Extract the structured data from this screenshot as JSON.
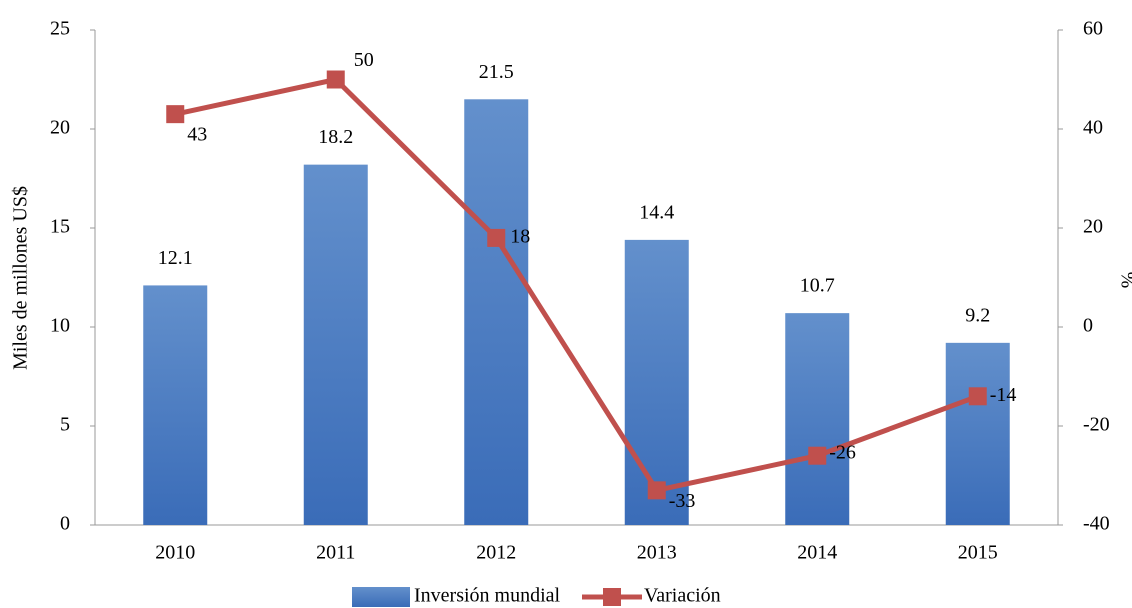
{
  "chart_data": {
    "type": "bar",
    "categories": [
      "2010",
      "2011",
      "2012",
      "2013",
      "2014",
      "2015"
    ],
    "series": [
      {
        "name": "Inversión mundial",
        "color": "#4a7cc2",
        "values": [
          12.1,
          18.2,
          21.5,
          14.4,
          10.7,
          9.2
        ]
      },
      {
        "name": "Variación",
        "color": "#c0504d",
        "axis": "y2",
        "values": [
          43,
          50,
          18,
          -33,
          -26,
          -14
        ]
      }
    ],
    "ylabel": "Miles de millones US$",
    "y2label": "%",
    "ylim": [
      0,
      25
    ],
    "yticks": [
      0,
      5,
      10,
      15,
      20,
      25
    ],
    "y2lim": [
      -40,
      60
    ],
    "y2ticks": [
      -40,
      -20,
      0,
      20,
      40,
      60
    ],
    "grid": false,
    "legend": "bottom"
  }
}
